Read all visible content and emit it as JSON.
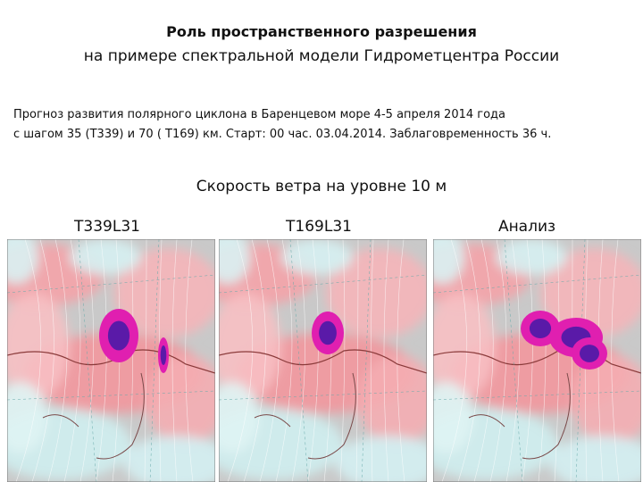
{
  "header": {
    "title": [
      "Роль пространственного разрешения",
      "на примере спектральной модели Гидрометцентра России"
    ]
  },
  "description": [
    "Прогноз развития полярного циклона  в Баренцевом море 4-5 апреля 2014 года",
    "с шагом 35 (Т339)  и 70 ( Т169) км.  Старт:  00 час. 03.04.2014.   Заблаговременность  36 ч."
  ],
  "subtitle": "Скорость ветра на уровне 10 м",
  "panels": [
    {
      "label": "T339L31"
    },
    {
      "label": "T169L31"
    },
    {
      "label": "Анализ"
    }
  ]
}
